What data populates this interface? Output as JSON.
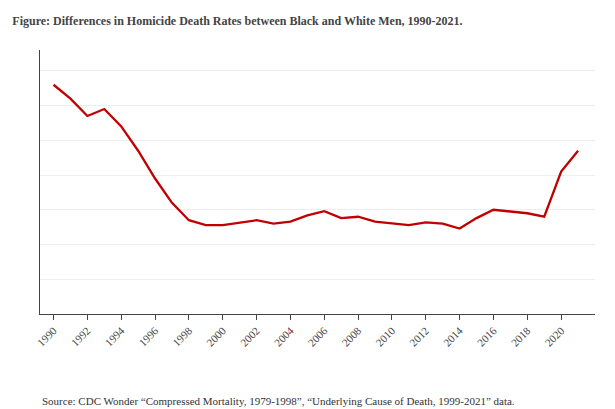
{
  "chart_data": {
    "type": "line",
    "title": "Figure: Differences in Homicide Death Rates between Black and White Men, 1990-2021.",
    "annotations": [
      "Source: CDC Wonder “Compressed Mortality, 1979-1998”, “Underlying Cause of Death, 1999-2021” data."
    ],
    "x": [
      1990,
      1991,
      1992,
      1993,
      1994,
      1995,
      1996,
      1997,
      1998,
      1999,
      2000,
      2001,
      2002,
      2003,
      2004,
      2005,
      2006,
      2007,
      2008,
      2009,
      2010,
      2011,
      2012,
      2013,
      2014,
      2015,
      2016,
      2017,
      2018,
      2019,
      2020,
      2021
    ],
    "values": [
      33.0,
      31.0,
      28.5,
      29.5,
      27.0,
      23.5,
      19.5,
      16.0,
      13.5,
      12.8,
      12.8,
      13.2,
      13.5,
      13.0,
      13.3,
      14.2,
      14.8,
      13.8,
      14.0,
      13.3,
      13.0,
      12.8,
      13.2,
      13.0,
      12.3,
      13.8,
      15.0,
      14.7,
      14.5,
      14.0,
      20.5,
      23.5
    ],
    "color": "#c00000",
    "xlim": [
      1989.2,
      2022.0
    ],
    "xticks": [
      1990,
      1992,
      1994,
      1996,
      1998,
      2000,
      2002,
      2004,
      2006,
      2008,
      2010,
      2012,
      2014,
      2016,
      2018,
      2020
    ],
    "ylim": [
      0,
      38
    ],
    "yticks": [
      5,
      10,
      15,
      20,
      25,
      30,
      35
    ],
    "grid": true,
    "tick_labels": "x"
  }
}
